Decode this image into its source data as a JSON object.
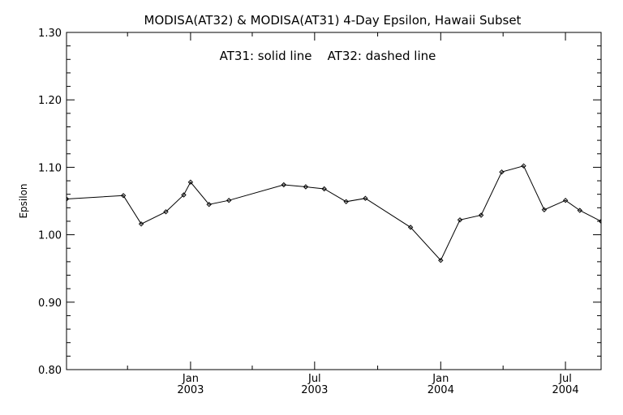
{
  "chart_data": {
    "type": "line",
    "title": "MODISA(AT32) & MODISA(AT31) 4-Day Epsilon, Hawaii Subset",
    "annotation": "AT31: solid line    AT32: dashed line",
    "xlabel": "",
    "ylabel": "Epsilon",
    "ylim": [
      0.8,
      1.3
    ],
    "xlim": [
      "2002-07-04",
      "2004-08-22"
    ],
    "grid": false,
    "y_ticks": [
      "0.80",
      "0.90",
      "1.00",
      "1.10",
      "1.20",
      "1.30"
    ],
    "x_ticks": [
      {
        "date": "2003-01-01",
        "month": "Jan",
        "year": "2003"
      },
      {
        "date": "2003-07-01",
        "month": "Jul",
        "year": "2003"
      },
      {
        "date": "2004-01-01",
        "month": "Jan",
        "year": "2004"
      },
      {
        "date": "2004-07-01",
        "month": "Jul",
        "year": "2004"
      }
    ],
    "series": [
      {
        "style": "solid",
        "color": "#000000",
        "x": [
          "2002-07-04",
          "2002-09-25",
          "2002-10-21",
          "2002-11-26",
          "2002-12-22",
          "2003-01-01",
          "2003-01-28",
          "2003-02-26",
          "2003-05-17",
          "2003-06-18",
          "2003-07-15",
          "2003-08-16",
          "2003-09-13",
          "2003-11-18",
          "2004-01-01",
          "2004-01-29",
          "2004-02-29",
          "2004-03-30",
          "2004-05-01",
          "2004-05-31",
          "2004-07-01",
          "2004-07-22",
          "2004-08-22"
        ],
        "y": [
          1.053,
          1.058,
          1.016,
          1.034,
          1.059,
          1.078,
          1.045,
          1.051,
          1.074,
          1.071,
          1.068,
          1.049,
          1.054,
          1.011,
          0.962,
          1.022,
          1.029,
          1.093,
          1.102,
          1.037,
          1.051,
          1.036,
          1.02
        ]
      }
    ]
  }
}
